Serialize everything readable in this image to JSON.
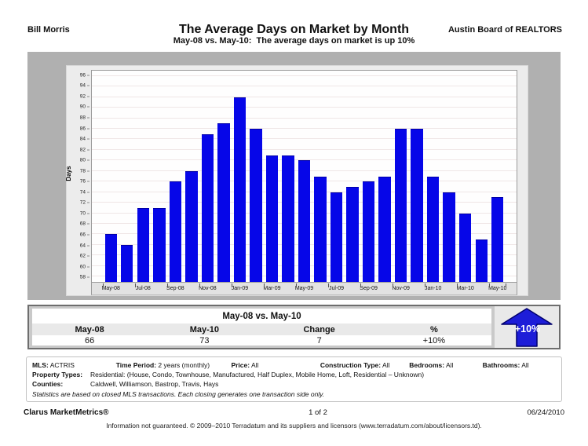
{
  "header": {
    "agent": "Bill Morris",
    "org": "Austin Board of REALTORS",
    "title": "The Average Days on Market by Month",
    "subtitle": "May-08 vs. May-10:  The average days on market is up 10%"
  },
  "chart_data": {
    "type": "bar",
    "title": "The Average Days on Market by Month",
    "xlabel": "",
    "ylabel": "Days",
    "categories": [
      "May-08",
      "Jun-08",
      "Jul-08",
      "Aug-08",
      "Sep-08",
      "Oct-08",
      "Nov-08",
      "Dec-08",
      "Jan-09",
      "Feb-09",
      "Mar-09",
      "Apr-09",
      "May-09",
      "Jun-09",
      "Jul-09",
      "Aug-09",
      "Sep-09",
      "Oct-09",
      "Nov-09",
      "Dec-09",
      "Jan-10",
      "Feb-10",
      "Mar-10",
      "Apr-10",
      "May-10"
    ],
    "values": [
      66,
      64,
      71,
      71,
      76,
      78,
      85,
      87,
      92,
      86,
      81,
      81,
      80,
      77,
      74,
      75,
      76,
      77,
      86,
      86,
      77,
      74,
      70,
      65,
      73
    ],
    "x_tick_labels": [
      "May-08",
      "Jul-08",
      "Sep-08",
      "Nov-08",
      "Jan-09",
      "Mar-09",
      "May-09",
      "Jul-09",
      "Sep-09",
      "Nov-09",
      "Jan-10",
      "Mar-10",
      "May-10"
    ],
    "ylim": [
      57,
      97
    ],
    "yticks": [
      58,
      60,
      62,
      64,
      66,
      68,
      70,
      72,
      74,
      76,
      78,
      80,
      82,
      84,
      86,
      88,
      90,
      92,
      94,
      96
    ],
    "grid": true,
    "legend": false,
    "bar_color": "#0606e8"
  },
  "summary": {
    "title": "May-08 vs. May-10",
    "columns": [
      "May-08",
      "May-10",
      "Change",
      "%"
    ],
    "values": [
      "66",
      "73",
      "7",
      "+10%"
    ],
    "arrow_label": "+10%",
    "arrow_color": "#1d1dd8",
    "arrow_outline": "#00006e"
  },
  "criteria": {
    "row1": [
      {
        "label": "MLS:",
        "value": "ACTRIS"
      },
      {
        "label": "Time Period:",
        "value": "2 years (monthly)"
      },
      {
        "label": "Price:",
        "value": "All"
      },
      {
        "label": "Construction Type:",
        "value": "All"
      },
      {
        "label": "Bedrooms:",
        "value": "All"
      },
      {
        "label": "Bathrooms:",
        "value": "All"
      }
    ],
    "property_types_label": "Property Types:",
    "property_types": "Residential: (House, Condo, Townhouse, Manufactured, Half Duplex, Mobile Home, Loft, Residential – Unknown)",
    "counties_label": "Counties:",
    "counties": "Caldwell, Williamson, Bastrop, Travis, Hays",
    "note": "Statistics are based on closed MLS transactions.  Each closing generates one transaction side only."
  },
  "footer": {
    "brand": "Clarus MarketMetrics®",
    "page": "1 of 2",
    "date": "06/24/2010",
    "disclaimer": "Information not guaranteed.  © 2009–2010 Terradatum and its suppliers and licensors (www.terradatum.com/about/licensors.td)."
  }
}
